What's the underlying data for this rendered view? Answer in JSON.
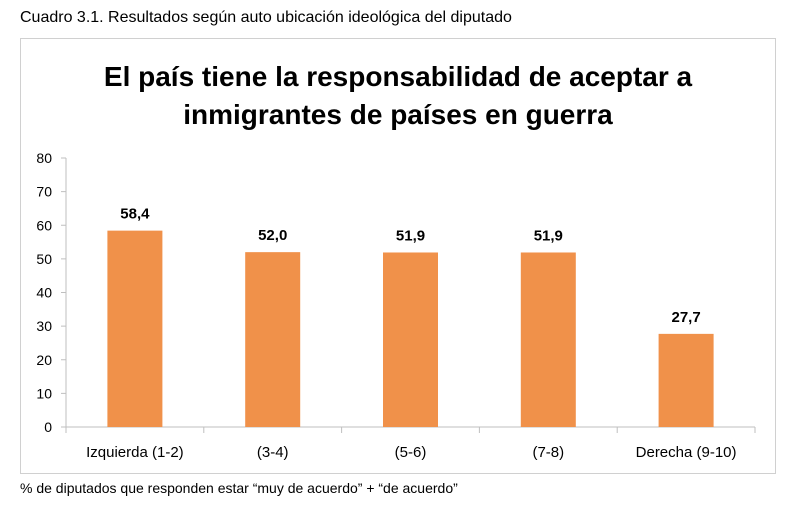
{
  "caption": "Cuadro 3.1. Resultados según auto ubicación ideológica del diputado",
  "footnote": "% de diputados que responden estar “muy de acuerdo” + “de acuerdo”",
  "chart_data": {
    "type": "bar",
    "title_lines": [
      "El país tiene la responsabilidad de aceptar a",
      "inmigrantes de países en guerra"
    ],
    "categories": [
      "Izquierda (1-2)",
      "(3-4)",
      "(5-6)",
      "(7-8)",
      "Derecha (9-10)"
    ],
    "values": [
      58.4,
      52.0,
      51.9,
      51.9,
      27.7
    ],
    "data_labels": [
      "58,4",
      "52,0",
      "51,9",
      "51,9",
      "27,7"
    ],
    "ylim": [
      0,
      80
    ],
    "yticks": [
      0,
      10,
      20,
      30,
      40,
      50,
      60,
      70,
      80
    ],
    "xlabel": "",
    "ylabel": "",
    "grid": false,
    "bar_color": "#F0914A"
  }
}
